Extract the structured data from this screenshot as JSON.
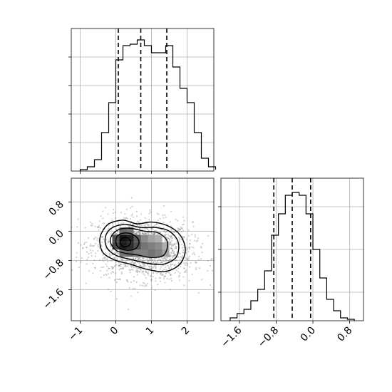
{
  "chart_data": [
    {
      "panel": "top-left",
      "type": "histogram",
      "title": "",
      "xlabel": "",
      "ylabel": "",
      "xlim": [
        -1.25,
        2.75
      ],
      "ylim": [
        0,
        1
      ],
      "grid": true,
      "y_tick_labels_shown": false,
      "bin_edges": [
        -1.0,
        -0.8,
        -0.6,
        -0.4,
        -0.2,
        0.0,
        0.2,
        0.4,
        0.6,
        0.8,
        1.0,
        1.2,
        1.4,
        1.6,
        1.8,
        2.0,
        2.2,
        2.4,
        2.6,
        2.8
      ],
      "counts": [
        0.01,
        0.03,
        0.08,
        0.27,
        0.48,
        0.78,
        0.88,
        0.89,
        0.92,
        0.88,
        0.83,
        0.83,
        0.88,
        0.73,
        0.58,
        0.48,
        0.27,
        0.09,
        0.03,
        0.01
      ],
      "quantile_lines": [
        0.07,
        0.7,
        1.43
      ],
      "x_ticks": [
        -1,
        0,
        1,
        2
      ],
      "x_tick_labels": [
        "−1",
        "0",
        "1",
        "2"
      ],
      "y_ticks": [
        0.2,
        0.4,
        0.6,
        0.8
      ]
    },
    {
      "panel": "bottom-left",
      "type": "heatmap",
      "subtype": "2d-histogram-with-contours",
      "title": "",
      "xlabel": "",
      "ylabel": "",
      "xlim": [
        -1.25,
        2.75
      ],
      "ylim": [
        -2.45,
        1.45
      ],
      "grid": true,
      "x_ticks": [
        -1,
        0,
        1,
        2
      ],
      "x_tick_labels": [
        "−1",
        "0",
        "1",
        "2"
      ],
      "y_ticks": [
        -1.6,
        -0.8,
        0.0,
        0.8
      ],
      "y_tick_labels": [
        "−1.6",
        "−0.8",
        "0.0",
        "0.8"
      ],
      "density_center": [
        0.3,
        -0.3
      ],
      "cells": [
        {
          "x": 0.2,
          "y": -0.2,
          "v": 0.95
        },
        {
          "x": 0.4,
          "y": -0.2,
          "v": 0.9
        },
        {
          "x": 0.2,
          "y": -0.4,
          "v": 0.92
        },
        {
          "x": 0.4,
          "y": -0.4,
          "v": 0.85
        },
        {
          "x": 0.0,
          "y": -0.2,
          "v": 0.7
        },
        {
          "x": 0.0,
          "y": -0.4,
          "v": 0.75
        },
        {
          "x": 0.6,
          "y": -0.2,
          "v": 0.65
        },
        {
          "x": 0.6,
          "y": -0.4,
          "v": 0.7
        },
        {
          "x": 0.2,
          "y": 0.0,
          "v": 0.6
        },
        {
          "x": 0.4,
          "y": 0.0,
          "v": 0.55
        },
        {
          "x": 0.2,
          "y": -0.6,
          "v": 0.55
        },
        {
          "x": 0.4,
          "y": -0.6,
          "v": 0.6
        },
        {
          "x": 0.8,
          "y": -0.4,
          "v": 0.55
        },
        {
          "x": 0.8,
          "y": -0.6,
          "v": 0.5
        },
        {
          "x": 1.0,
          "y": -0.4,
          "v": 0.5
        },
        {
          "x": 1.0,
          "y": -0.6,
          "v": 0.55
        },
        {
          "x": 1.2,
          "y": -0.4,
          "v": 0.45
        },
        {
          "x": 1.2,
          "y": -0.6,
          "v": 0.5
        },
        {
          "x": 1.4,
          "y": -0.4,
          "v": 0.3
        },
        {
          "x": 1.4,
          "y": -0.6,
          "v": 0.35
        },
        {
          "x": 0.6,
          "y": -0.6,
          "v": 0.5
        },
        {
          "x": 0.8,
          "y": -0.2,
          "v": 0.45
        },
        {
          "x": 1.0,
          "y": -0.2,
          "v": 0.35
        },
        {
          "x": 1.2,
          "y": -0.2,
          "v": 0.3
        }
      ],
      "contours": [
        [
          [
            -0.45,
            -0.3
          ],
          [
            -0.4,
            -0.05
          ],
          [
            -0.2,
            0.2
          ],
          [
            0.2,
            0.3
          ],
          [
            0.6,
            0.2
          ],
          [
            1.0,
            0.25
          ],
          [
            1.45,
            0.15
          ],
          [
            1.8,
            -0.1
          ],
          [
            1.95,
            -0.5
          ],
          [
            1.8,
            -0.9
          ],
          [
            1.4,
            -1.1
          ],
          [
            0.9,
            -1.05
          ],
          [
            0.4,
            -0.9
          ],
          [
            0.0,
            -0.8
          ],
          [
            -0.35,
            -0.6
          ]
        ],
        [
          [
            -0.3,
            -0.3
          ],
          [
            -0.25,
            -0.05
          ],
          [
            -0.05,
            0.12
          ],
          [
            0.3,
            0.18
          ],
          [
            0.7,
            0.1
          ],
          [
            1.1,
            0.1
          ],
          [
            1.5,
            0.0
          ],
          [
            1.75,
            -0.3
          ],
          [
            1.7,
            -0.7
          ],
          [
            1.35,
            -0.9
          ],
          [
            0.9,
            -0.88
          ],
          [
            0.45,
            -0.78
          ],
          [
            0.05,
            -0.68
          ],
          [
            -0.2,
            -0.52
          ]
        ],
        [
          [
            -0.15,
            -0.3
          ],
          [
            -0.1,
            -0.1
          ],
          [
            0.1,
            0.05
          ],
          [
            0.4,
            0.08
          ],
          [
            0.8,
            0.0
          ],
          [
            1.2,
            -0.05
          ],
          [
            1.45,
            -0.3
          ],
          [
            1.35,
            -0.65
          ],
          [
            1.0,
            -0.72
          ],
          [
            0.6,
            -0.65
          ],
          [
            0.25,
            -0.6
          ],
          [
            0.0,
            -0.52
          ]
        ],
        [
          [
            0.0,
            -0.3
          ],
          [
            0.05,
            -0.12
          ],
          [
            0.25,
            -0.05
          ],
          [
            0.5,
            -0.1
          ],
          [
            0.65,
            -0.28
          ],
          [
            0.55,
            -0.48
          ],
          [
            0.3,
            -0.52
          ],
          [
            0.08,
            -0.45
          ]
        ],
        [
          [
            0.12,
            -0.3
          ],
          [
            0.18,
            -0.2
          ],
          [
            0.32,
            -0.18
          ],
          [
            0.42,
            -0.28
          ],
          [
            0.36,
            -0.4
          ],
          [
            0.2,
            -0.42
          ]
        ]
      ]
    },
    {
      "panel": "bottom-right",
      "type": "histogram",
      "title": "",
      "xlabel": "",
      "ylabel": "",
      "xlim": [
        -2.0,
        1.1
      ],
      "ylim": [
        0,
        1
      ],
      "grid": true,
      "y_tick_labels_shown": false,
      "bin_edges": [
        -1.8,
        -1.65,
        -1.5,
        -1.35,
        -1.2,
        -1.05,
        -0.9,
        -0.75,
        -0.6,
        -0.45,
        -0.3,
        -0.15,
        0.0,
        0.15,
        0.3,
        0.45,
        0.6,
        0.75,
        0.9
      ],
      "counts": [
        0.02,
        0.05,
        0.08,
        0.14,
        0.22,
        0.35,
        0.6,
        0.75,
        0.88,
        0.9,
        0.88,
        0.75,
        0.5,
        0.3,
        0.15,
        0.07,
        0.02,
        0.01
      ],
      "quantile_lines": [
        -0.85,
        -0.45,
        -0.05
      ],
      "x_ticks": [
        -1.6,
        -0.8,
        0.0,
        0.8
      ],
      "x_tick_labels": [
        "−1.6",
        "−0.8",
        "0.0",
        "0.8"
      ],
      "y_ticks": [
        0.2,
        0.5,
        0.8
      ]
    }
  ]
}
